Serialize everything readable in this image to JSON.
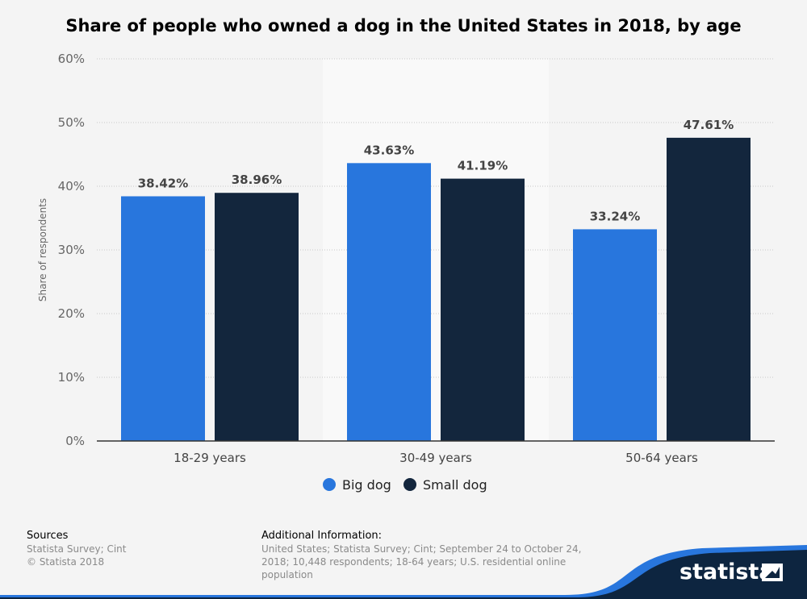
{
  "chart_data": {
    "type": "bar",
    "title": "Share of people who owned a dog in the United States in 2018, by age",
    "ylabel": "Share of respondents",
    "categories": [
      "18-29 years",
      "30-49 years",
      "50-64 years"
    ],
    "series": [
      {
        "name": "Big dog",
        "color": "#2876dd",
        "values": [
          38.42,
          43.63,
          33.24
        ],
        "labels": [
          "38.42%",
          "43.63%",
          "33.24%"
        ]
      },
      {
        "name": "Small dog",
        "color": "#13263d",
        "values": [
          38.96,
          41.19,
          47.61
        ],
        "labels": [
          "38.96%",
          "41.19%",
          "47.61%"
        ]
      }
    ],
    "ylim": [
      0,
      60
    ],
    "yticks": [
      0,
      10,
      20,
      30,
      40,
      50,
      60
    ],
    "ytick_labels": [
      "0%",
      "10%",
      "20%",
      "30%",
      "40%",
      "50%",
      "60%"
    ],
    "grid": true,
    "legend_position": "bottom-center"
  },
  "footer": {
    "sources_heading": "Sources",
    "sources_lines": [
      "Statista Survey; Cint",
      "© Statista 2018"
    ],
    "additional_heading": "Additional Information:",
    "additional_lines": [
      "United States; Statista Survey; Cint; September 24 to October 24,",
      "2018; 10,448 respondents; 18-64 years; U.S. residential online",
      "population"
    ]
  },
  "brand": {
    "name": "statista",
    "accent_color": "#2876dd",
    "dark_color": "#0d2540"
  }
}
